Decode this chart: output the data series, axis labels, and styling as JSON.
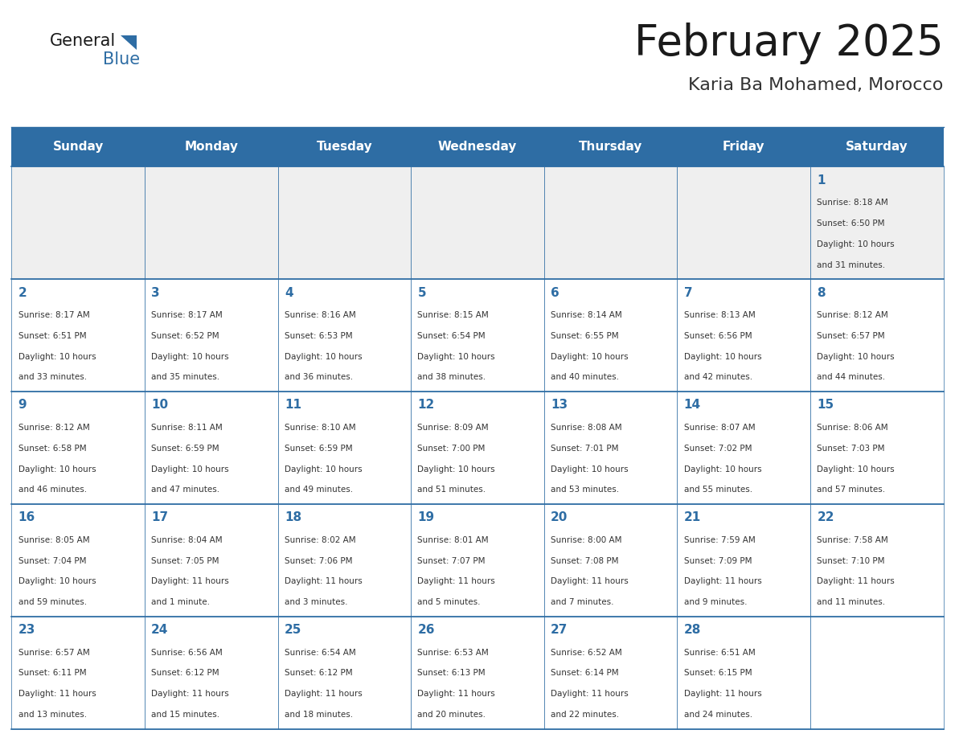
{
  "title": "February 2025",
  "subtitle": "Karia Ba Mohamed, Morocco",
  "header_bg": "#2E6DA4",
  "header_text_color": "#FFFFFF",
  "cell_bg_gray": "#EFEFEF",
  "cell_bg_white": "#FFFFFF",
  "border_color": "#2E6DA4",
  "day_names": [
    "Sunday",
    "Monday",
    "Tuesday",
    "Wednesday",
    "Thursday",
    "Friday",
    "Saturday"
  ],
  "title_color": "#1a1a1a",
  "subtitle_color": "#333333",
  "day_number_color": "#2E6DA4",
  "info_color": "#333333",
  "logo_general_color": "#1a1a1a",
  "logo_blue_color": "#2E6DA4",
  "logo_triangle_color": "#2E6DA4",
  "days": [
    {
      "day": 1,
      "col": 6,
      "row": 0,
      "sunrise": "8:18 AM",
      "sunset": "6:50 PM",
      "daylight_h": "10 hours",
      "daylight_m": "and 31 minutes."
    },
    {
      "day": 2,
      "col": 0,
      "row": 1,
      "sunrise": "8:17 AM",
      "sunset": "6:51 PM",
      "daylight_h": "10 hours",
      "daylight_m": "and 33 minutes."
    },
    {
      "day": 3,
      "col": 1,
      "row": 1,
      "sunrise": "8:17 AM",
      "sunset": "6:52 PM",
      "daylight_h": "10 hours",
      "daylight_m": "and 35 minutes."
    },
    {
      "day": 4,
      "col": 2,
      "row": 1,
      "sunrise": "8:16 AM",
      "sunset": "6:53 PM",
      "daylight_h": "10 hours",
      "daylight_m": "and 36 minutes."
    },
    {
      "day": 5,
      "col": 3,
      "row": 1,
      "sunrise": "8:15 AM",
      "sunset": "6:54 PM",
      "daylight_h": "10 hours",
      "daylight_m": "and 38 minutes."
    },
    {
      "day": 6,
      "col": 4,
      "row": 1,
      "sunrise": "8:14 AM",
      "sunset": "6:55 PM",
      "daylight_h": "10 hours",
      "daylight_m": "and 40 minutes."
    },
    {
      "day": 7,
      "col": 5,
      "row": 1,
      "sunrise": "8:13 AM",
      "sunset": "6:56 PM",
      "daylight_h": "10 hours",
      "daylight_m": "and 42 minutes."
    },
    {
      "day": 8,
      "col": 6,
      "row": 1,
      "sunrise": "8:12 AM",
      "sunset": "6:57 PM",
      "daylight_h": "10 hours",
      "daylight_m": "and 44 minutes."
    },
    {
      "day": 9,
      "col": 0,
      "row": 2,
      "sunrise": "8:12 AM",
      "sunset": "6:58 PM",
      "daylight_h": "10 hours",
      "daylight_m": "and 46 minutes."
    },
    {
      "day": 10,
      "col": 1,
      "row": 2,
      "sunrise": "8:11 AM",
      "sunset": "6:59 PM",
      "daylight_h": "10 hours",
      "daylight_m": "and 47 minutes."
    },
    {
      "day": 11,
      "col": 2,
      "row": 2,
      "sunrise": "8:10 AM",
      "sunset": "6:59 PM",
      "daylight_h": "10 hours",
      "daylight_m": "and 49 minutes."
    },
    {
      "day": 12,
      "col": 3,
      "row": 2,
      "sunrise": "8:09 AM",
      "sunset": "7:00 PM",
      "daylight_h": "10 hours",
      "daylight_m": "and 51 minutes."
    },
    {
      "day": 13,
      "col": 4,
      "row": 2,
      "sunrise": "8:08 AM",
      "sunset": "7:01 PM",
      "daylight_h": "10 hours",
      "daylight_m": "and 53 minutes."
    },
    {
      "day": 14,
      "col": 5,
      "row": 2,
      "sunrise": "8:07 AM",
      "sunset": "7:02 PM",
      "daylight_h": "10 hours",
      "daylight_m": "and 55 minutes."
    },
    {
      "day": 15,
      "col": 6,
      "row": 2,
      "sunrise": "8:06 AM",
      "sunset": "7:03 PM",
      "daylight_h": "10 hours",
      "daylight_m": "and 57 minutes."
    },
    {
      "day": 16,
      "col": 0,
      "row": 3,
      "sunrise": "8:05 AM",
      "sunset": "7:04 PM",
      "daylight_h": "10 hours",
      "daylight_m": "and 59 minutes."
    },
    {
      "day": 17,
      "col": 1,
      "row": 3,
      "sunrise": "8:04 AM",
      "sunset": "7:05 PM",
      "daylight_h": "11 hours",
      "daylight_m": "and 1 minute."
    },
    {
      "day": 18,
      "col": 2,
      "row": 3,
      "sunrise": "8:02 AM",
      "sunset": "7:06 PM",
      "daylight_h": "11 hours",
      "daylight_m": "and 3 minutes."
    },
    {
      "day": 19,
      "col": 3,
      "row": 3,
      "sunrise": "8:01 AM",
      "sunset": "7:07 PM",
      "daylight_h": "11 hours",
      "daylight_m": "and 5 minutes."
    },
    {
      "day": 20,
      "col": 4,
      "row": 3,
      "sunrise": "8:00 AM",
      "sunset": "7:08 PM",
      "daylight_h": "11 hours",
      "daylight_m": "and 7 minutes."
    },
    {
      "day": 21,
      "col": 5,
      "row": 3,
      "sunrise": "7:59 AM",
      "sunset": "7:09 PM",
      "daylight_h": "11 hours",
      "daylight_m": "and 9 minutes."
    },
    {
      "day": 22,
      "col": 6,
      "row": 3,
      "sunrise": "7:58 AM",
      "sunset": "7:10 PM",
      "daylight_h": "11 hours",
      "daylight_m": "and 11 minutes."
    },
    {
      "day": 23,
      "col": 0,
      "row": 4,
      "sunrise": "6:57 AM",
      "sunset": "6:11 PM",
      "daylight_h": "11 hours",
      "daylight_m": "and 13 minutes."
    },
    {
      "day": 24,
      "col": 1,
      "row": 4,
      "sunrise": "6:56 AM",
      "sunset": "6:12 PM",
      "daylight_h": "11 hours",
      "daylight_m": "and 15 minutes."
    },
    {
      "day": 25,
      "col": 2,
      "row": 4,
      "sunrise": "6:54 AM",
      "sunset": "6:12 PM",
      "daylight_h": "11 hours",
      "daylight_m": "and 18 minutes."
    },
    {
      "day": 26,
      "col": 3,
      "row": 4,
      "sunrise": "6:53 AM",
      "sunset": "6:13 PM",
      "daylight_h": "11 hours",
      "daylight_m": "and 20 minutes."
    },
    {
      "day": 27,
      "col": 4,
      "row": 4,
      "sunrise": "6:52 AM",
      "sunset": "6:14 PM",
      "daylight_h": "11 hours",
      "daylight_m": "and 22 minutes."
    },
    {
      "day": 28,
      "col": 5,
      "row": 4,
      "sunrise": "6:51 AM",
      "sunset": "6:15 PM",
      "daylight_h": "11 hours",
      "daylight_m": "and 24 minutes."
    }
  ]
}
